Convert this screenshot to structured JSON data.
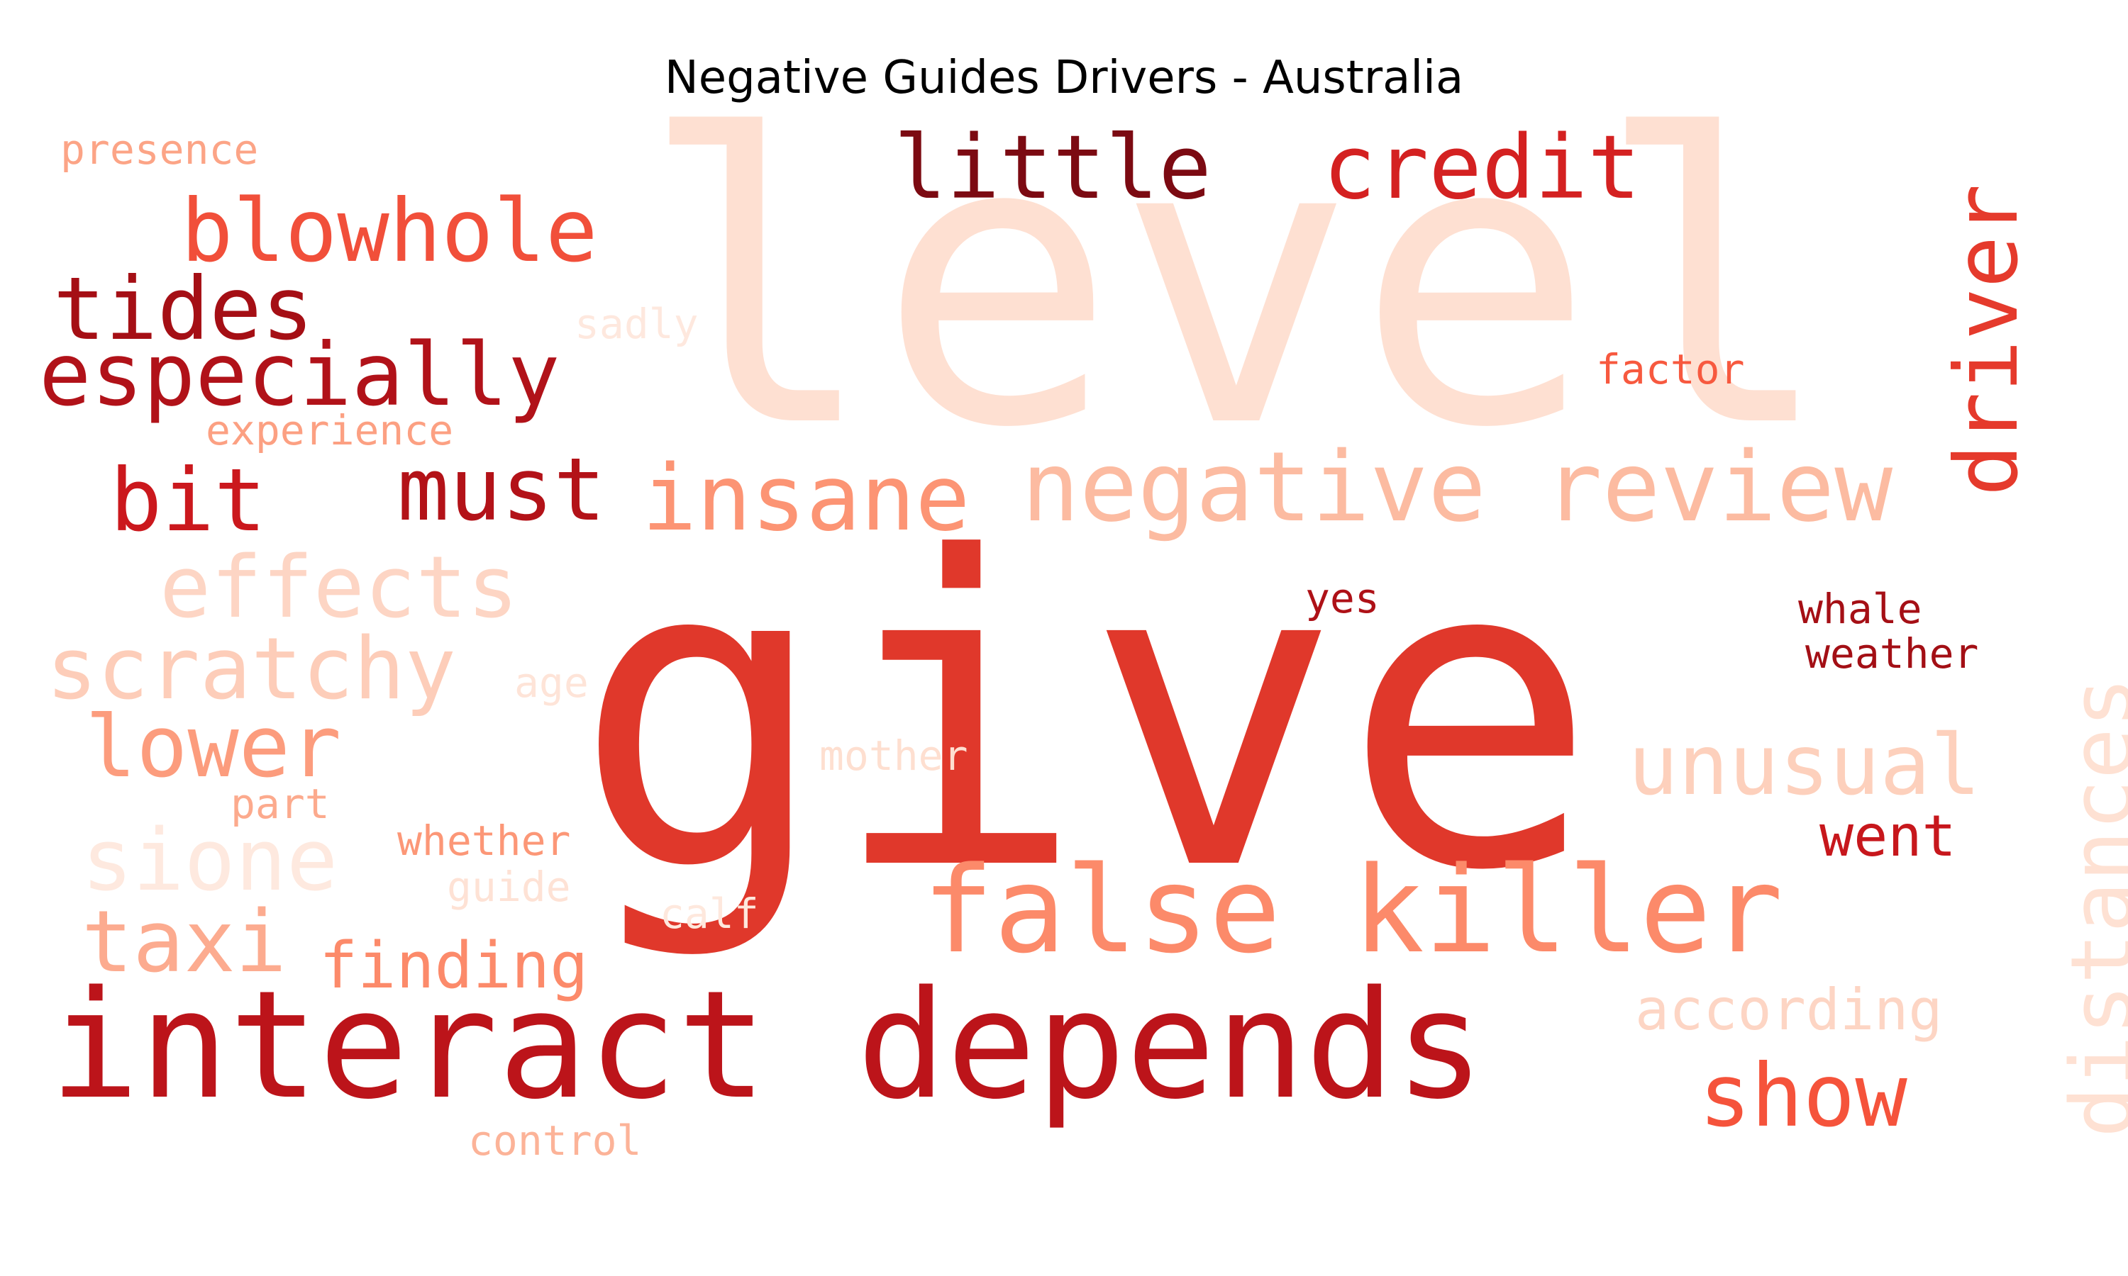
{
  "title": "Negative Guides Drivers - Australia",
  "words": [
    {
      "text": "level",
      "color": "#fee0d2"
    },
    {
      "text": "give",
      "color": "#e0382b"
    },
    {
      "text": "interact depends",
      "color": "#bc141a"
    },
    {
      "text": "false killer",
      "color": "#fc8a6a"
    },
    {
      "text": "negative review",
      "color": "#fcbba1"
    },
    {
      "text": "insane",
      "color": "#fc9474"
    },
    {
      "text": "little",
      "color": "#7c0a12"
    },
    {
      "text": "credit",
      "color": "#d42121"
    },
    {
      "text": "blowhole",
      "color": "#f14f3a"
    },
    {
      "text": "tides",
      "color": "#a50f15"
    },
    {
      "text": "especially",
      "color": "#b11219"
    },
    {
      "text": "bit",
      "color": "#cb181d"
    },
    {
      "text": "must",
      "color": "#b31218"
    },
    {
      "text": "effects",
      "color": "#fdd5c4"
    },
    {
      "text": "scratchy",
      "color": "#fdcdb9"
    },
    {
      "text": "lower",
      "color": "#fc9c7d"
    },
    {
      "text": "sione",
      "color": "#fee9df"
    },
    {
      "text": "taxi",
      "color": "#fcab8f"
    },
    {
      "text": "finding",
      "color": "#fc8a6a"
    },
    {
      "text": "driver",
      "color": "#e53a2c"
    },
    {
      "text": "distances",
      "color": "#fee1d3"
    },
    {
      "text": "unusual",
      "color": "#fdd0bc"
    },
    {
      "text": "went",
      "color": "#c7171c"
    },
    {
      "text": "according",
      "color": "#fdd5c4"
    },
    {
      "text": "show",
      "color": "#f5533b"
    },
    {
      "text": "presence",
      "color": "#fca486"
    },
    {
      "text": "sadly",
      "color": "#fee8de"
    },
    {
      "text": "experience",
      "color": "#fca082"
    },
    {
      "text": "factor",
      "color": "#f7593f"
    },
    {
      "text": "yes",
      "color": "#ae1117"
    },
    {
      "text": "whale",
      "color": "#a50f15"
    },
    {
      "text": "weather",
      "color": "#a30f15"
    },
    {
      "text": "age",
      "color": "#fee4d8"
    },
    {
      "text": "mother",
      "color": "#fedfd0"
    },
    {
      "text": "part",
      "color": "#fcaa8d"
    },
    {
      "text": "whether",
      "color": "#fc9777"
    },
    {
      "text": "guide",
      "color": "#fee2d5"
    },
    {
      "text": "calf",
      "color": "#fee8dd"
    },
    {
      "text": "control",
      "color": "#fcb398"
    }
  ]
}
